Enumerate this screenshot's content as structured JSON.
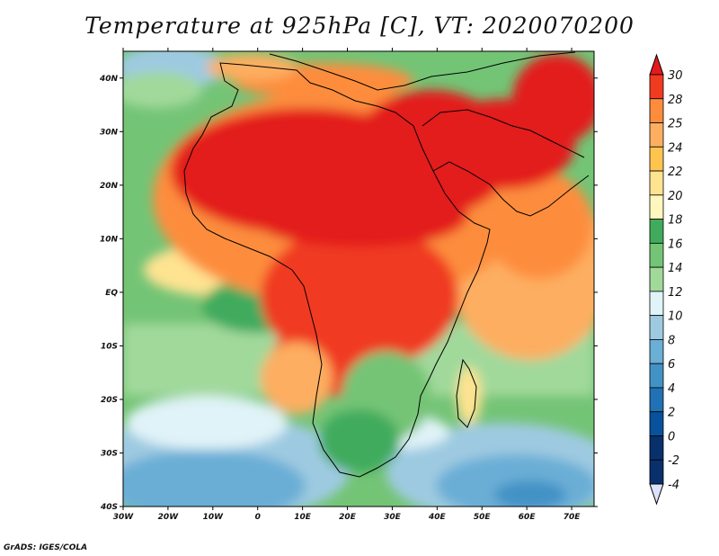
{
  "title": "Temperature at 925hPa [C], VT: 2020070200",
  "credit": "GrADS: IGES/COLA",
  "map": {
    "lon_range": [
      -30,
      75
    ],
    "lat_range": [
      -40,
      45
    ],
    "x_ticks": [
      "30W",
      "20W",
      "10W",
      "0",
      "10E",
      "20E",
      "30E",
      "40E",
      "50E",
      "60E",
      "70E"
    ],
    "y_ticks": [
      "40S",
      "30S",
      "20S",
      "10S",
      "EQ",
      "10N",
      "20N",
      "30N",
      "40N"
    ]
  },
  "colorbar": {
    "labels": [
      "30",
      "28",
      "25",
      "24",
      "22",
      "20",
      "18",
      "16",
      "14",
      "12",
      "10",
      "8",
      "6",
      "4",
      "2",
      "0",
      "-2",
      "-4"
    ],
    "colors": [
      "#e31a1c",
      "#f03b20",
      "#fd8d3c",
      "#fdae61",
      "#fec44f",
      "#fee391",
      "#fff7bc",
      "#41ab5d",
      "#74c476",
      "#a1d99b",
      "#e0f3f8",
      "#9ecae1",
      "#6baed6",
      "#4292c6",
      "#2171b5",
      "#08519c",
      "#08306b",
      "#dde2ff"
    ]
  }
}
